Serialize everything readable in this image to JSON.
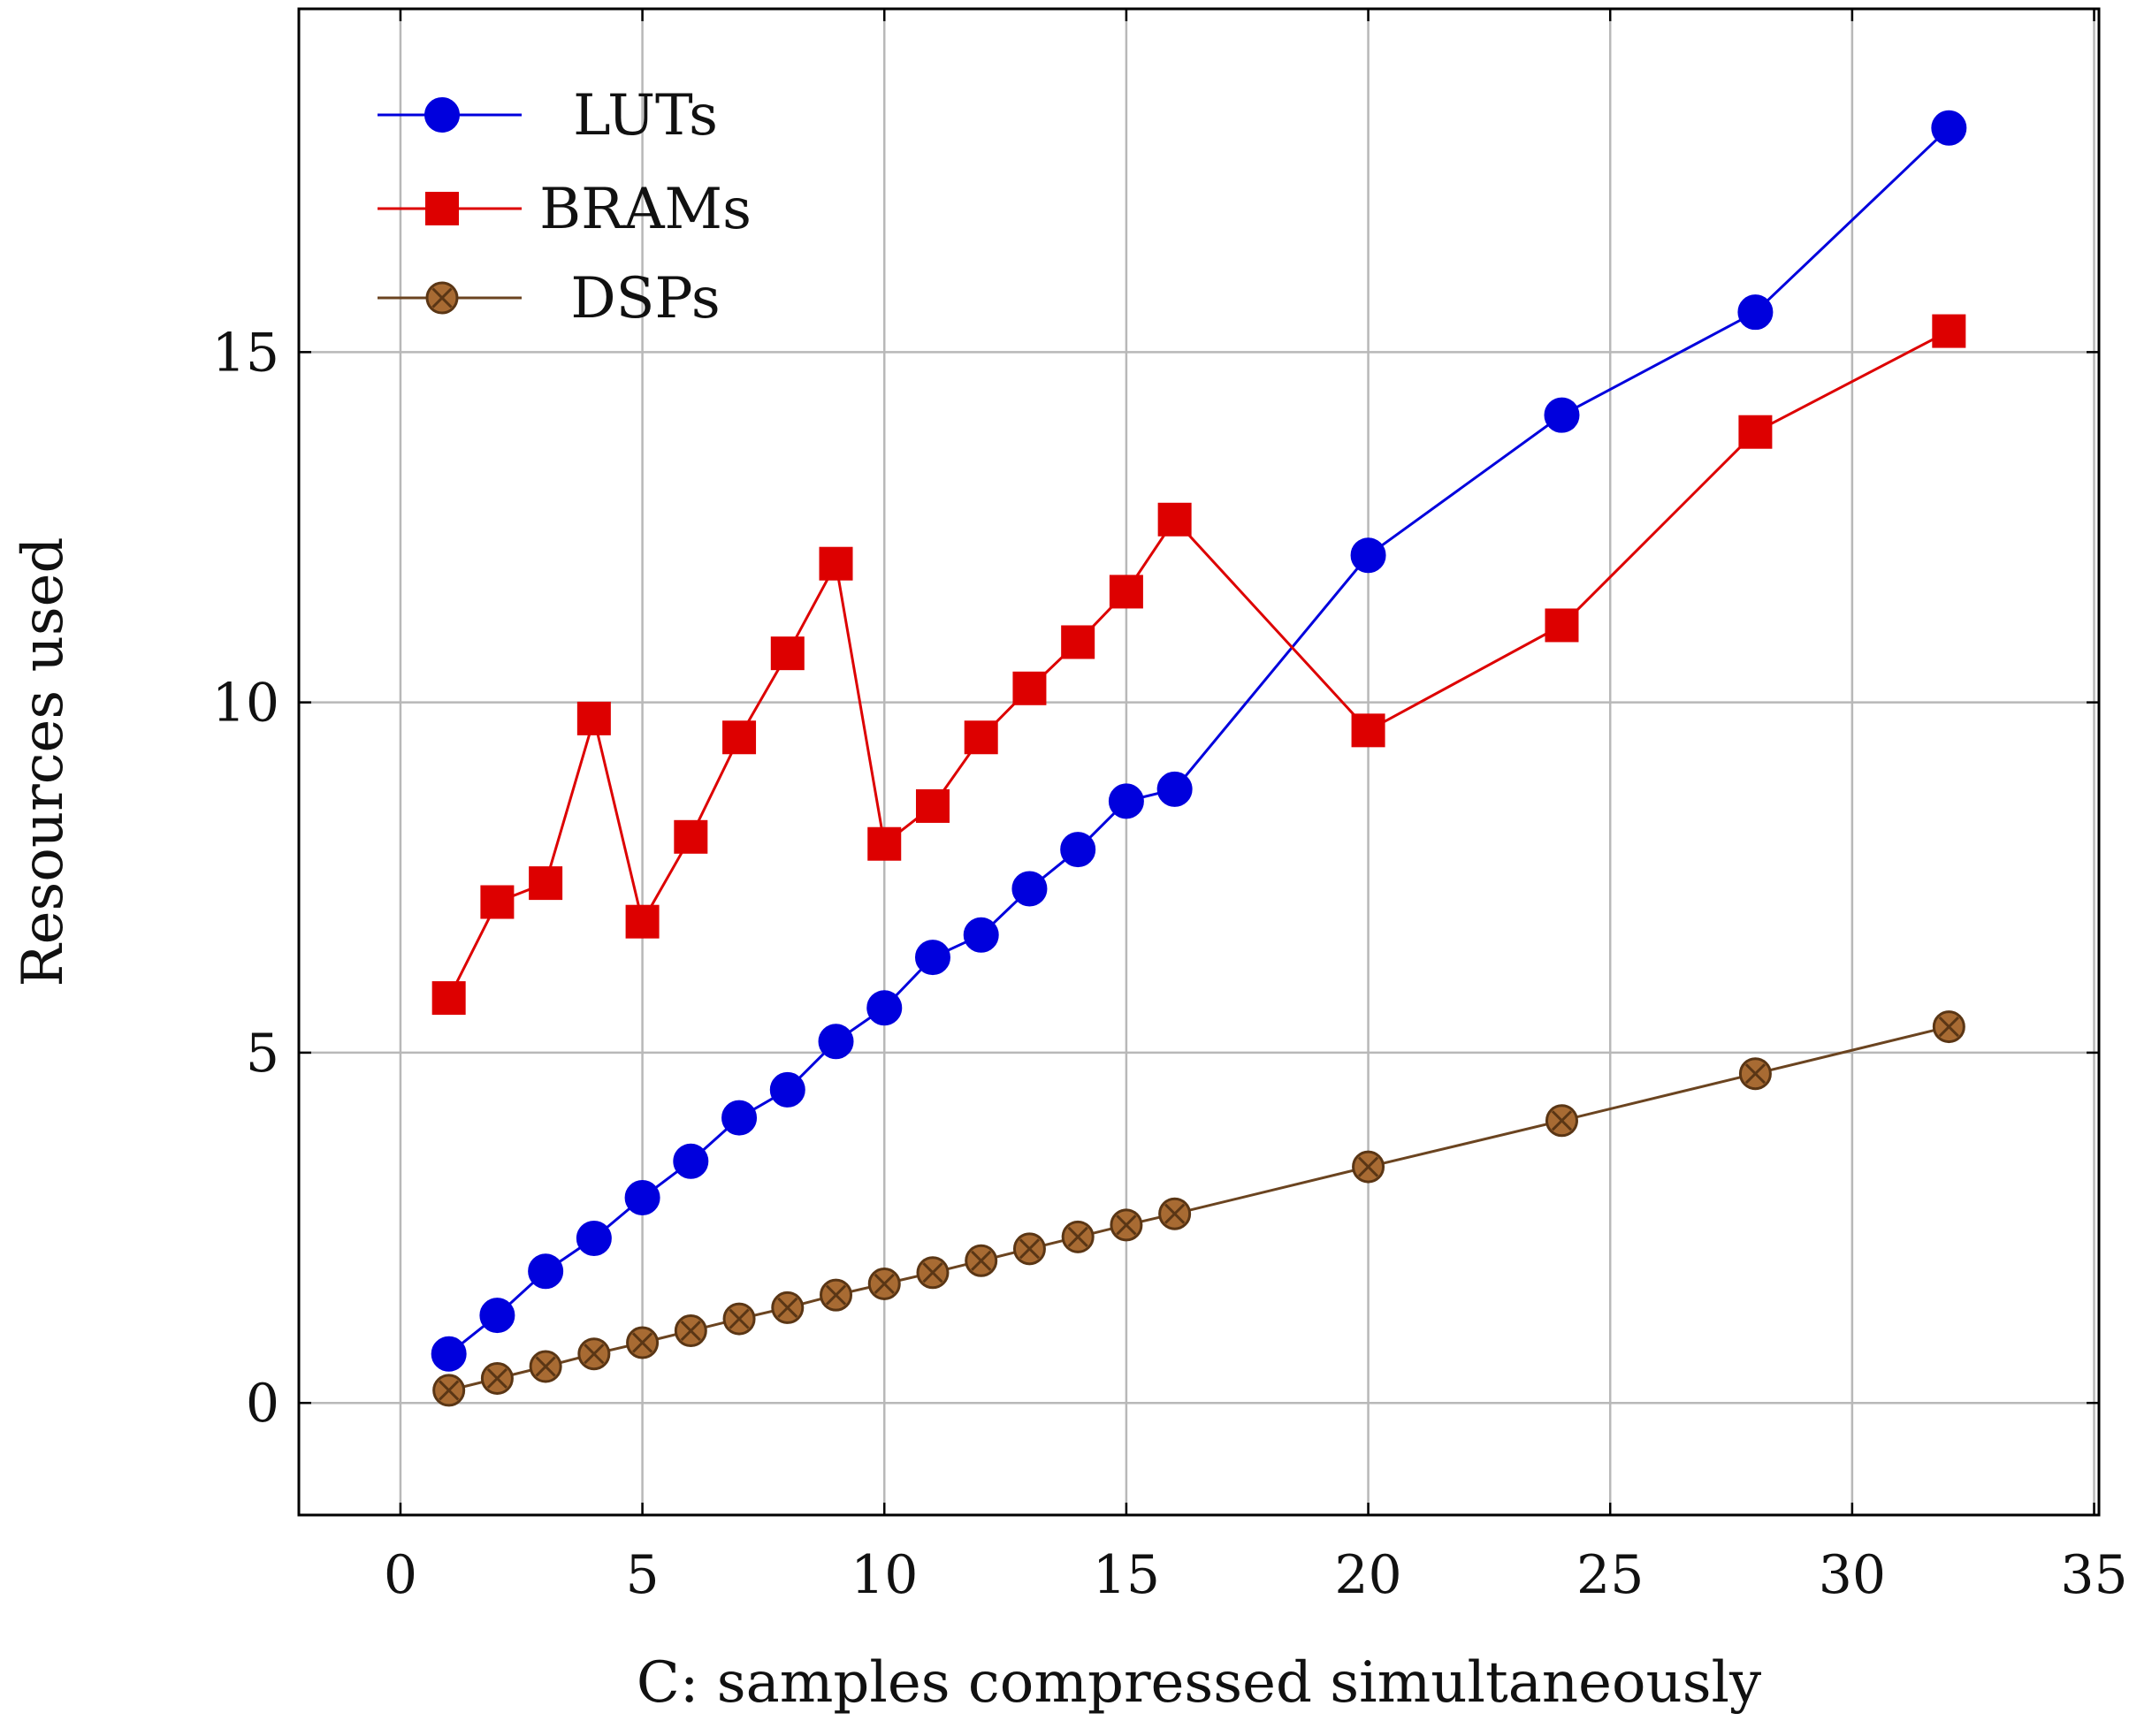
{
  "chart_data": {
    "type": "line",
    "title": "",
    "xlabel": "C: samples compressed simultaneously",
    "ylabel": "Resources used",
    "xlim": [
      -2.1,
      35.1
    ],
    "ylim": [
      -1.6,
      19.9
    ],
    "xticks": [
      0,
      5,
      10,
      15,
      20,
      25,
      30,
      35
    ],
    "yticks": [
      0,
      5,
      10,
      15
    ],
    "grid": true,
    "legend_position": "top-left",
    "x": [
      1,
      2,
      3,
      4,
      5,
      6,
      7,
      8,
      9,
      10,
      11,
      12,
      13,
      14,
      15,
      16,
      20,
      24,
      28,
      32
    ],
    "series": [
      {
        "name": "LUTs",
        "color": "#0000dd",
        "marker": "circle",
        "values": [
          0.7,
          1.25,
          1.88,
          2.35,
          2.93,
          3.45,
          4.07,
          4.47,
          5.16,
          5.64,
          6.36,
          6.68,
          7.34,
          7.9,
          8.59,
          8.76,
          12.1,
          14.1,
          15.57,
          18.2
        ]
      },
      {
        "name": "BRAMs",
        "color": "#dd0000",
        "marker": "square",
        "values": [
          5.78,
          7.15,
          7.42,
          9.77,
          6.87,
          8.08,
          9.5,
          10.7,
          11.98,
          7.98,
          8.52,
          9.5,
          10.2,
          10.86,
          11.58,
          12.61,
          9.6,
          11.1,
          13.86,
          15.3
        ]
      },
      {
        "name": "DSPs",
        "color": "#6b4420",
        "marker": "circle-x",
        "values": [
          0.18,
          0.35,
          0.52,
          0.7,
          0.86,
          1.03,
          1.2,
          1.36,
          1.54,
          1.7,
          1.86,
          2.03,
          2.2,
          2.37,
          2.54,
          2.7,
          3.37,
          4.03,
          4.7,
          5.37
        ]
      }
    ]
  }
}
